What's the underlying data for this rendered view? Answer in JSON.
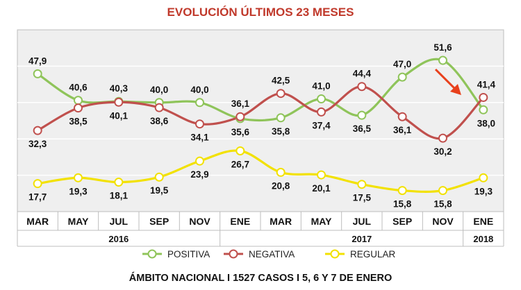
{
  "colors": {
    "title": "#c0392b",
    "positiva": "#8fc45a",
    "negativa": "#c0504d",
    "regular": "#f2e100",
    "plot_bg": "#efefef",
    "arrow": "#e8401c"
  },
  "chart_data": {
    "type": "line",
    "title": "EVOLUCIÓN ÚLTIMOS 23 MESES",
    "categories": [
      "MAR",
      "MAY",
      "JUL",
      "SEP",
      "NOV",
      "ENE",
      "MAR",
      "MAY",
      "JUL",
      "SEP",
      "NOV",
      "ENE"
    ],
    "year_labels": [
      {
        "text": "2016",
        "index": 2
      },
      {
        "text": "2017",
        "index": 8
      },
      {
        "text": "2018",
        "index": 11
      }
    ],
    "series": [
      {
        "name": "POSITIVA",
        "values": [
          47.9,
          40.6,
          40.3,
          40.0,
          40.0,
          35.6,
          35.8,
          41.0,
          36.5,
          47.0,
          51.6,
          38.0
        ]
      },
      {
        "name": "NEGATIVA",
        "values": [
          32.3,
          38.5,
          40.1,
          38.6,
          34.1,
          36.1,
          42.5,
          37.4,
          44.4,
          36.1,
          30.2,
          41.4
        ]
      },
      {
        "name": "REGULAR",
        "values": [
          17.7,
          19.3,
          18.1,
          19.5,
          23.9,
          26.7,
          20.8,
          20.1,
          17.5,
          15.8,
          15.8,
          19.3
        ]
      }
    ],
    "ylim": [
      10,
      60
    ],
    "grid": true,
    "legend": "bottom"
  },
  "footer": "ÁMBITO NACIONAL I 1527 CASOS I  5, 6 Y 7 DE ENERO"
}
